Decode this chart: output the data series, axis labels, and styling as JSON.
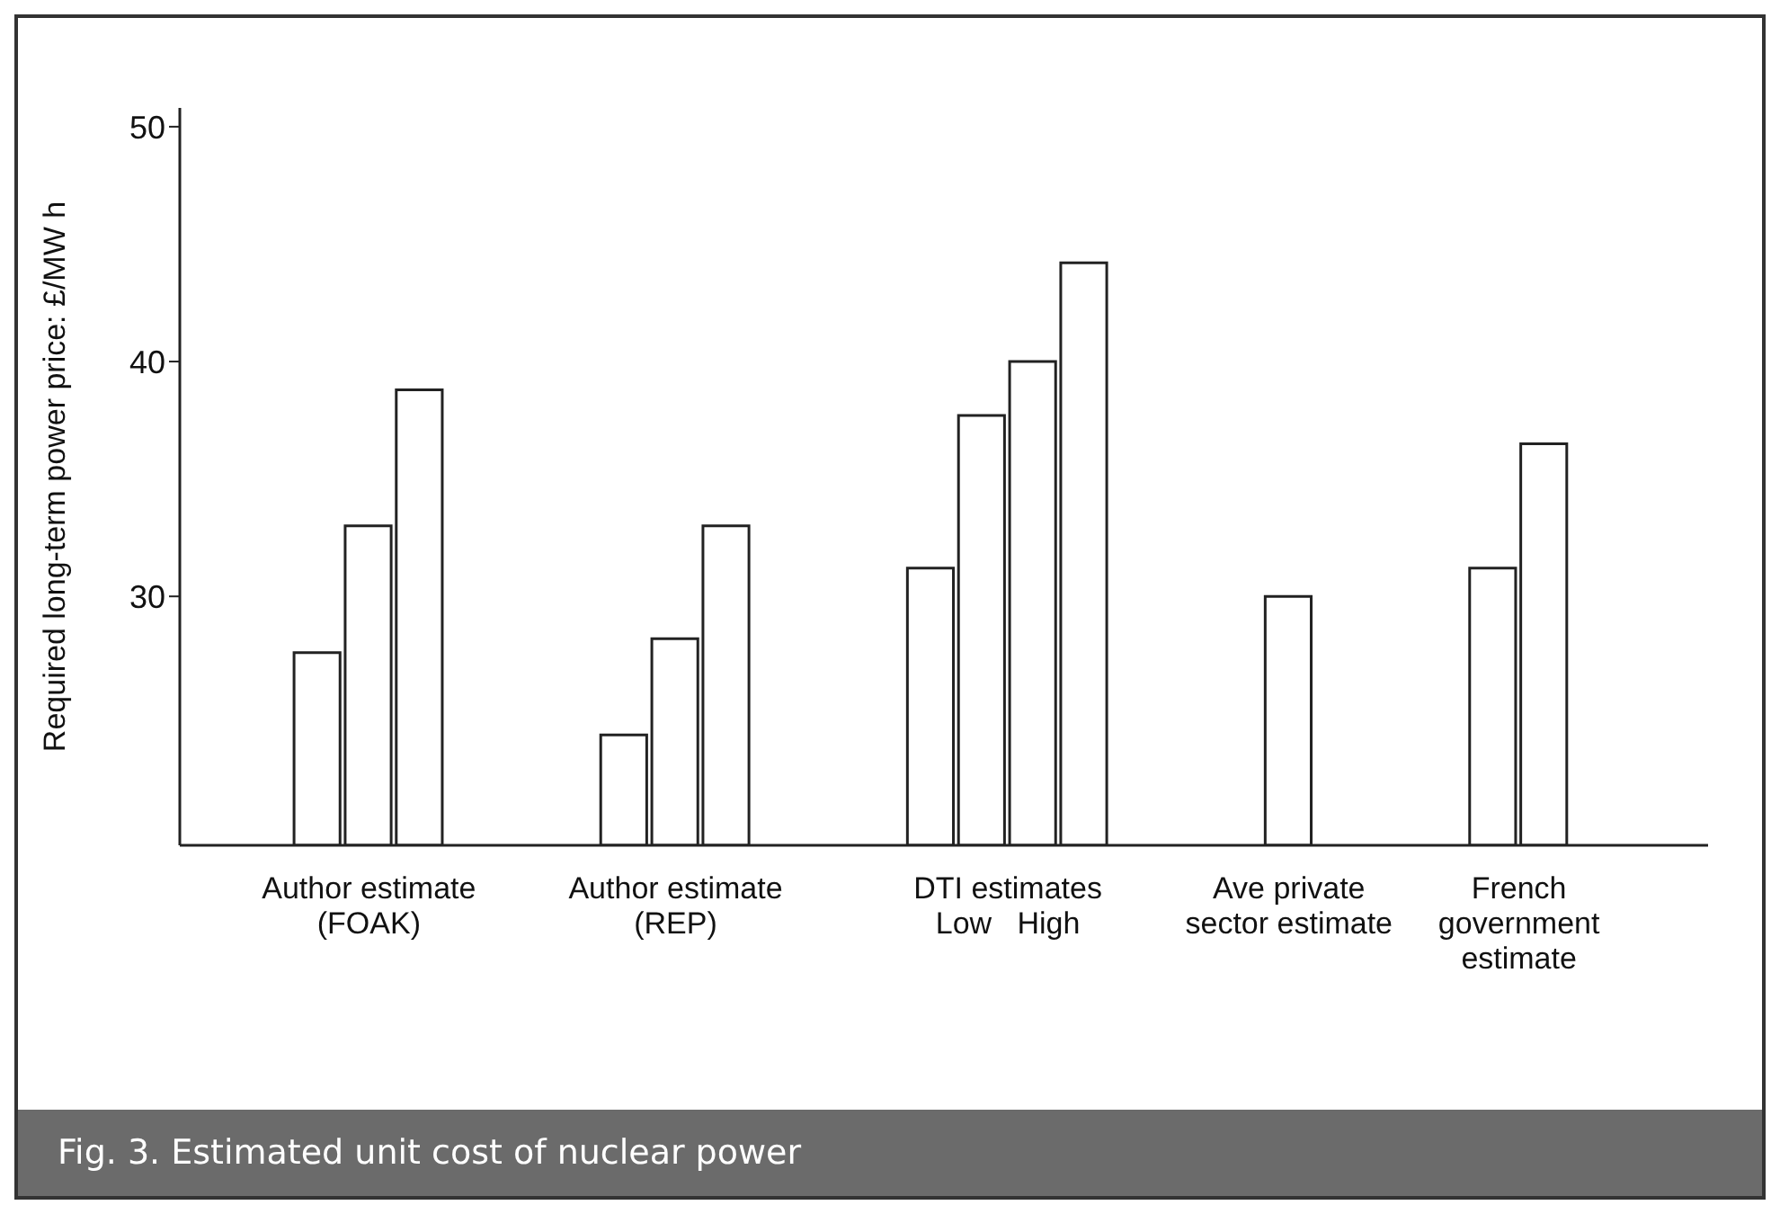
{
  "chart_data": {
    "type": "bar",
    "ylabel": "Required long-term power price: £/MW h",
    "categories": [
      "Author estimate\n(FOAK)",
      "Author estimate\n(REP)",
      "DTI estimates\nLow   High",
      "Ave private\nsector estimate",
      "French\ngovernment\nestimate"
    ],
    "series": [
      {
        "color": "#ffffff",
        "values": [
          27.6,
          24.1,
          31.2,
          30.0,
          31.2
        ]
      },
      {
        "color": "#ffffff",
        "values": [
          33.0,
          28.2,
          37.7,
          null,
          36.5
        ]
      },
      {
        "color": "#ffffff",
        "values": [
          38.8,
          33.0,
          40.0,
          null,
          null
        ]
      },
      {
        "color": "#ffffff",
        "values": [
          null,
          null,
          44.2,
          null,
          null
        ]
      }
    ],
    "ylim": [
      19.4,
      50.8
    ],
    "yticks": [
      30,
      40,
      50
    ],
    "grid": false,
    "legend": false,
    "annotations": [
      "Fig. 3. Estimated unit cost of nuclear power"
    ]
  }
}
